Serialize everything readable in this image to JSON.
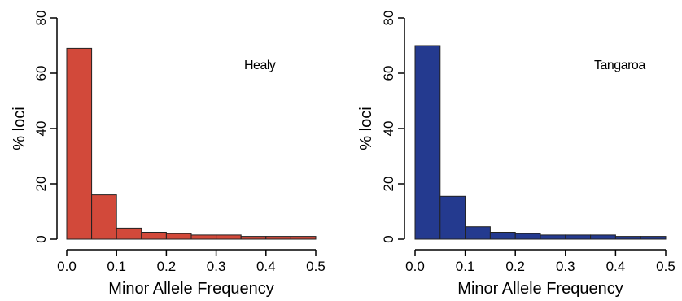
{
  "chart_data": [
    {
      "type": "bar",
      "panel_label": "Healy",
      "xlabel": "Minor Allele Frequency",
      "ylabel": "% loci",
      "bin_edges": [
        0.0,
        0.05,
        0.1,
        0.15,
        0.2,
        0.25,
        0.3,
        0.35,
        0.4,
        0.45,
        0.5
      ],
      "values": [
        69,
        16,
        4,
        2.5,
        2,
        1.5,
        1.5,
        1,
        1,
        1
      ],
      "xlim": [
        0,
        0.5
      ],
      "ylim": [
        0,
        80
      ],
      "x_ticks": [
        "0.0",
        "0.1",
        "0.2",
        "0.3",
        "0.4",
        "0.5"
      ],
      "y_ticks": [
        "0",
        "20",
        "40",
        "60",
        "80"
      ],
      "bar_color": "#d2493a",
      "grid": false
    },
    {
      "type": "bar",
      "panel_label": "Tangaroa",
      "xlabel": "Minor Allele Frequency",
      "ylabel": "% loci",
      "bin_edges": [
        0.0,
        0.05,
        0.1,
        0.15,
        0.2,
        0.25,
        0.3,
        0.35,
        0.4,
        0.45,
        0.5
      ],
      "values": [
        70,
        15.5,
        4.5,
        2.5,
        2,
        1.5,
        1.5,
        1.5,
        1,
        1
      ],
      "xlim": [
        0,
        0.5
      ],
      "ylim": [
        0,
        80
      ],
      "x_ticks": [
        "0.0",
        "0.1",
        "0.2",
        "0.3",
        "0.4",
        "0.5"
      ],
      "y_ticks": [
        "0",
        "20",
        "40",
        "60",
        "80"
      ],
      "bar_color": "#243a8f",
      "grid": false
    }
  ]
}
